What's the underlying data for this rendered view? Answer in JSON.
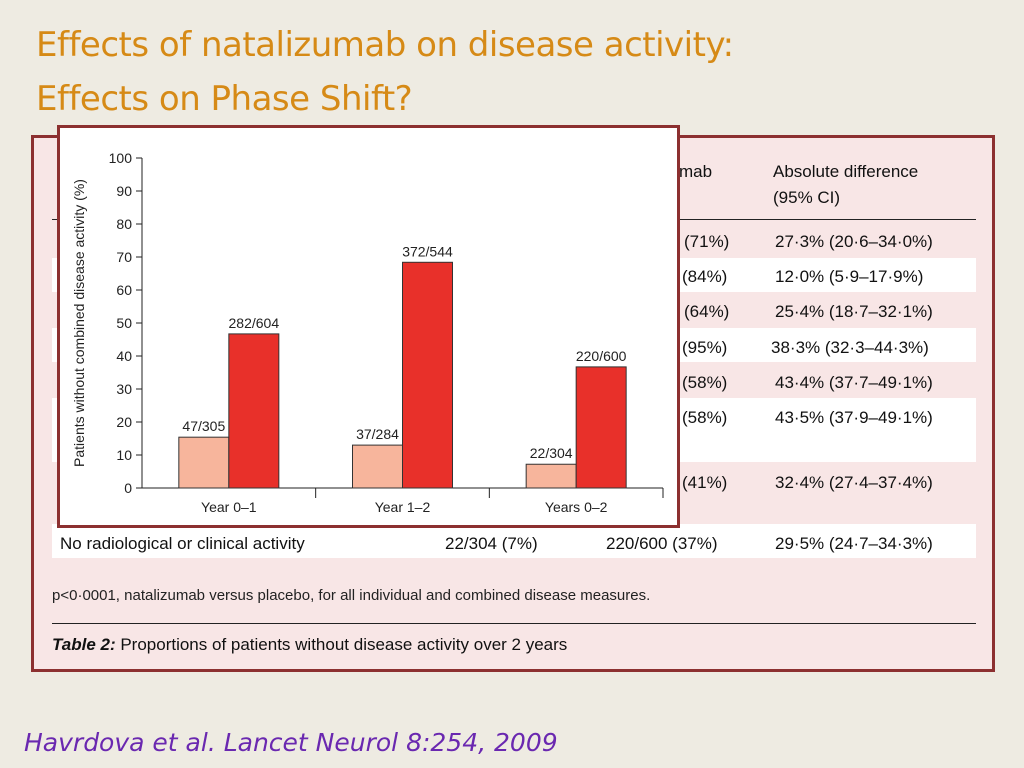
{
  "slide": {
    "title_line1": "Effects of natalizumab on disease activity:",
    "title_line2": "Effects on Phase Shift?",
    "citation": "Havrdova et al.  Lancet Neurol  8:254, 2009"
  },
  "table": {
    "header_natalizumab_partial": "mab",
    "header_diff_line1": "Absolute difference",
    "header_diff_line2": "(95% CI)",
    "rows": [
      {
        "label": "",
        "placebo": "",
        "natalizumab": "(71%)",
        "difference": "27·3% (20·6–34·0%)"
      },
      {
        "label": "",
        "placebo": "",
        "natalizumab": "(84%)",
        "difference": "12·0% (5·9–17·9%)"
      },
      {
        "label": "",
        "placebo": "",
        "natalizumab": "(64%)",
        "difference": "25·4% (18·7–32·1%)"
      },
      {
        "label": "",
        "placebo": "",
        "natalizumab": "(95%)",
        "difference": "38·3% (32·3–44·3%)"
      },
      {
        "label": "",
        "placebo": "",
        "natalizumab": "(58%)",
        "difference": "43·4% (37·7–49·1%)"
      },
      {
        "label": "",
        "placebo": "",
        "natalizumab": "(58%)",
        "difference": "43·5% (37·9–49·1%)"
      },
      {
        "label": "",
        "placebo": "",
        "natalizumab": "(41%)",
        "difference": "32·4% (27·4–37·4%)"
      },
      {
        "label": "No radiological or clinical activity",
        "placebo": "22/304 (7%)",
        "natalizumab": "220/600 (37%)",
        "difference": "29·5% (24·7–34·3%)"
      }
    ],
    "footnote": "p<0·0001, natalizumab versus placebo, for all individual and combined disease measures.",
    "caption_label": "Table 2:",
    "caption_text": " Proportions of patients without disease activity over 2 years"
  },
  "chart_data": {
    "type": "bar",
    "ylabel": "Patients without combined disease activity (%)",
    "ylim": [
      0,
      100
    ],
    "yticks": [
      0,
      10,
      20,
      30,
      40,
      50,
      60,
      70,
      80,
      90,
      100
    ],
    "categories": [
      "Year 0–1",
      "Year 1–2",
      "Years 0–2"
    ],
    "series": [
      {
        "values": [
          15.4,
          13.0,
          7.2
        ],
        "labels": [
          "47/305",
          "37/284",
          "22/304"
        ],
        "color": "#f7b59c"
      },
      {
        "values": [
          46.7,
          68.4,
          36.7
        ],
        "labels": [
          "282/604",
          "372/544",
          "220/600"
        ],
        "color": "#e8302a"
      }
    ]
  }
}
